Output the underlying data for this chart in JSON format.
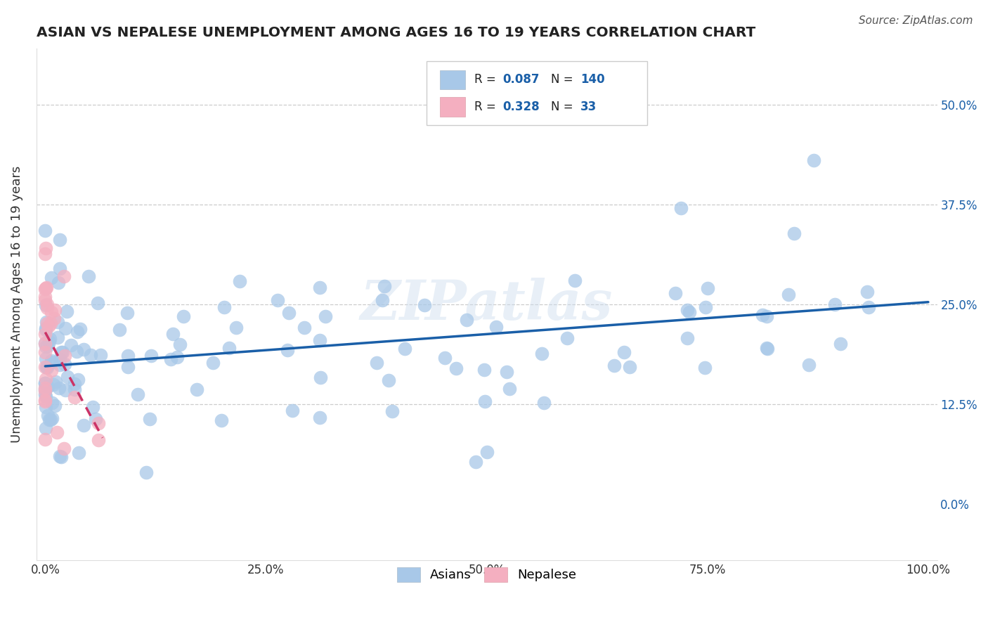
{
  "title": "ASIAN VS NEPALESE UNEMPLOYMENT AMONG AGES 16 TO 19 YEARS CORRELATION CHART",
  "source_text": "Source: ZipAtlas.com",
  "ylabel": "Unemployment Among Ages 16 to 19 years",
  "xlim": [
    0.0,
    1.0
  ],
  "ylim": [
    -0.07,
    0.57
  ],
  "xtick_vals": [
    0.0,
    0.25,
    0.5,
    0.75,
    1.0
  ],
  "xticklabels": [
    "0.0%",
    "25.0%",
    "50.0%",
    "75.0%",
    "100.0%"
  ],
  "ytick_vals": [
    0.0,
    0.125,
    0.25,
    0.375,
    0.5
  ],
  "yticklabels_right": [
    "0.0%",
    "12.5%",
    "25.0%",
    "37.5%",
    "50.0%"
  ],
  "asian_color": "#a8c8e8",
  "nepalese_color": "#f4afc0",
  "trend_asian_color": "#1a5fa8",
  "trend_nepalese_color": "#cc3366",
  "watermark": "ZIPatlas",
  "legend_r_asian": "0.087",
  "legend_n_asian": "140",
  "legend_r_nepalese": "0.328",
  "legend_n_nepalese": "33",
  "background_color": "#ffffff",
  "grid_color": "#cccccc",
  "right_tick_color": "#1a5fa8"
}
